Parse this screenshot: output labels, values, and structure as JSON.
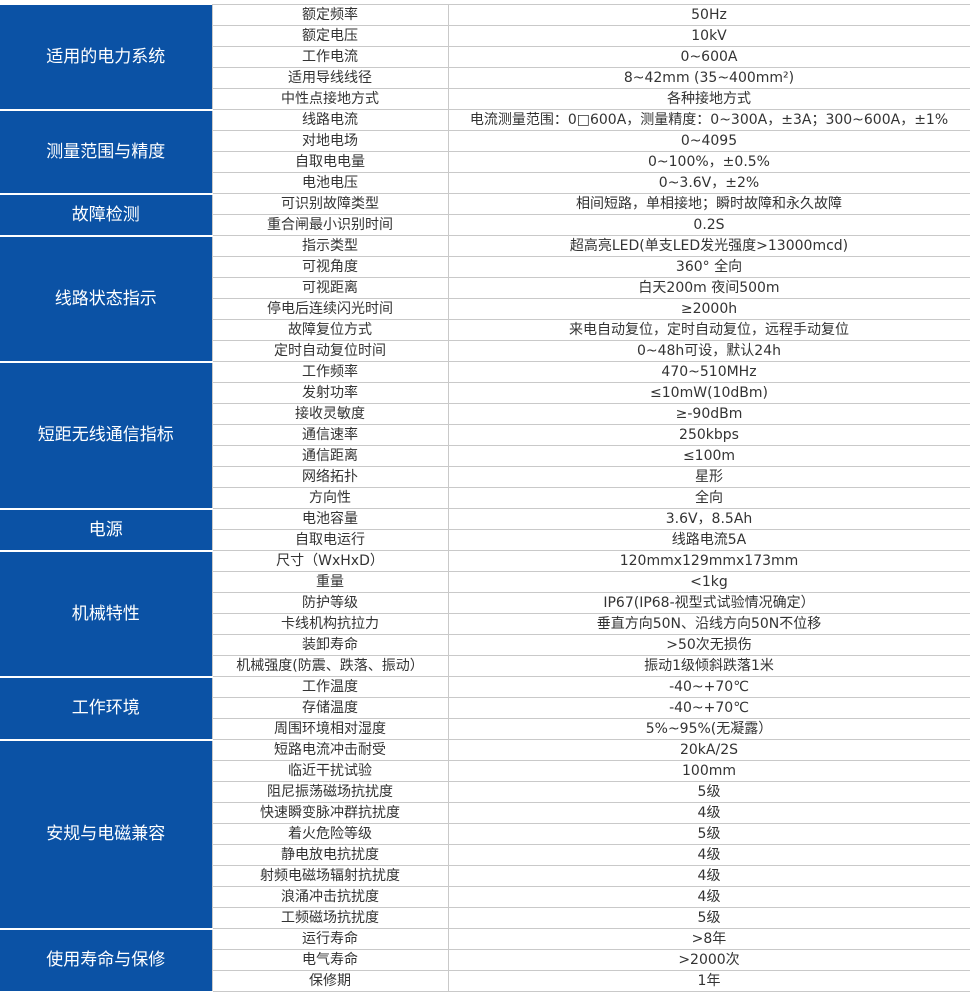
{
  "colors": {
    "group_bg": "#0b52a5",
    "group_text": "#ffffff",
    "text": "#333333"
  },
  "groups": [
    {
      "name": "适用的电力系统",
      "rows": [
        [
          "额定频率",
          "50Hz"
        ],
        [
          "额定电压",
          "10kV"
        ],
        [
          "工作电流",
          "0~600A"
        ],
        [
          "适用导线线径",
          "8~42mm (35~400mm²)"
        ],
        [
          "中性点接地方式",
          "各种接地方式"
        ]
      ]
    },
    {
      "name": "测量范围与精度",
      "rows": [
        [
          "线路电流",
          "电流测量范围：0□600A，测量精度：0~300A，±3A；300~600A，±1%"
        ],
        [
          "对地电场",
          "0~4095"
        ],
        [
          "自取电电量",
          "0~100%，±0.5%"
        ],
        [
          "电池电压",
          "0~3.6V，±2%"
        ]
      ]
    },
    {
      "name": "故障检测",
      "rows": [
        [
          "可识别故障类型",
          "相间短路，单相接地；瞬时故障和永久故障"
        ],
        [
          "重合闸最小识别时间",
          "0.2S"
        ]
      ]
    },
    {
      "name": "线路状态指示",
      "rows": [
        [
          "指示类型",
          "超高亮LED(单支LED发光强度>13000mcd)"
        ],
        [
          "可视角度",
          "360° 全向"
        ],
        [
          "可视距离",
          "白天200m 夜间500m"
        ],
        [
          "停电后连续闪光时间",
          "≥2000h"
        ],
        [
          "故障复位方式",
          "来电自动复位，定时自动复位，远程手动复位"
        ],
        [
          "定时自动复位时间",
          "0~48h可设，默认24h"
        ]
      ]
    },
    {
      "name": "短距无线通信指标",
      "rows": [
        [
          "工作频率",
          "470~510MHz"
        ],
        [
          "发射功率",
          "≤10mW(10dBm)"
        ],
        [
          "接收灵敏度",
          "≥-90dBm"
        ],
        [
          "通信速率",
          "250kbps"
        ],
        [
          "通信距离",
          "≤100m"
        ],
        [
          "网络拓扑",
          "星形"
        ],
        [
          "方向性",
          "全向"
        ]
      ]
    },
    {
      "name": "电源",
      "rows": [
        [
          "电池容量",
          "3.6V，8.5Ah"
        ],
        [
          "自取电运行",
          "线路电流5A"
        ]
      ]
    },
    {
      "name": "机械特性",
      "rows": [
        [
          "尺寸（WxHxD）",
          "120mmx129mmx173mm"
        ],
        [
          "重量",
          "<1kg"
        ],
        [
          "防护等级",
          "IP67(IP68-视型式试验情况确定）"
        ],
        [
          "卡线机构抗拉力",
          "垂直方向50N、沿线方向50N不位移"
        ],
        [
          "装卸寿命",
          ">50次无损伤"
        ],
        [
          "机械强度(防震、跌落、振动）",
          "振动1级倾斜跌落1米"
        ]
      ]
    },
    {
      "name": "工作环境",
      "rows": [
        [
          "工作温度",
          "-40~+70℃"
        ],
        [
          "存储温度",
          "-40~+70℃"
        ],
        [
          "周围环境相对湿度",
          "5%~95%(无凝露）"
        ]
      ]
    },
    {
      "name": "安规与电磁兼容",
      "rows": [
        [
          "短路电流冲击耐受",
          "20kA/2S"
        ],
        [
          "临近干扰试验",
          "100mm"
        ],
        [
          "阻尼振荡磁场抗扰度",
          "5级"
        ],
        [
          "快速瞬变脉冲群抗扰度",
          "4级"
        ],
        [
          "着火危险等级",
          "5级"
        ],
        [
          "静电放电抗扰度",
          "4级"
        ],
        [
          "射频电磁场辐射抗扰度",
          "4级"
        ],
        [
          "浪涌冲击抗扰度",
          "4级"
        ],
        [
          "工频磁场抗扰度",
          "5级"
        ]
      ]
    },
    {
      "name": "使用寿命与保修",
      "rows": [
        [
          "运行寿命",
          ">8年"
        ],
        [
          "电气寿命",
          ">2000次"
        ],
        [
          "保修期",
          "1年"
        ]
      ]
    }
  ]
}
